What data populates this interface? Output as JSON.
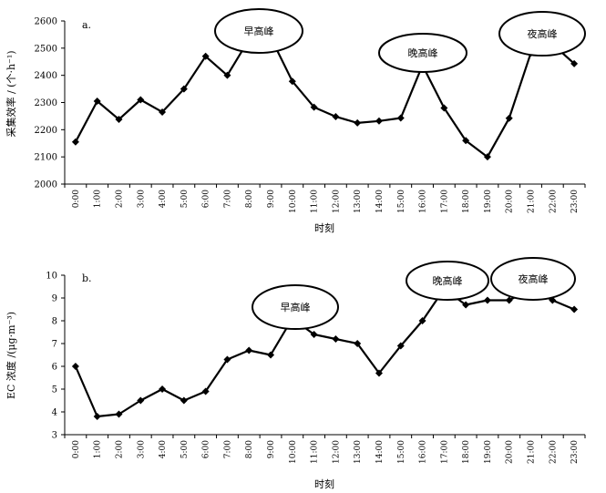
{
  "chart_data": [
    {
      "type": "line",
      "panel_label": "a.",
      "xlabel": "时刻",
      "ylabel": "采集效率 / (个·h⁻¹)",
      "categories": [
        "0:00",
        "1:00",
        "2:00",
        "3:00",
        "4:00",
        "5:00",
        "6:00",
        "7:00",
        "8:00",
        "9:00",
        "10:00",
        "11:00",
        "12:00",
        "13:00",
        "14:00",
        "15:00",
        "16:00",
        "17:00",
        "18:00",
        "19:00",
        "20:00",
        "21:00",
        "22:00",
        "23:00"
      ],
      "series": [
        {
          "values": [
            2155,
            2305,
            2238,
            2310,
            2265,
            2350,
            2470,
            2400,
            2532,
            2540,
            2378,
            2283,
            2248,
            2225,
            2232,
            2243,
            2437,
            2280,
            2160,
            2100,
            2242,
            2482,
            2515,
            2443
          ]
        }
      ],
      "ylim": [
        2000,
        2600
      ],
      "yticks": [
        2000,
        2100,
        2200,
        2300,
        2400,
        2500,
        2600
      ],
      "grid": false,
      "annotations": [
        {
          "text": "早高峰",
          "at": "8:00–9:00"
        },
        {
          "text": "晚高峰",
          "at": "16:00"
        },
        {
          "text": "夜高峰",
          "at": "21:00–22:00"
        }
      ]
    },
    {
      "type": "line",
      "panel_label": "b.",
      "xlabel": "时刻",
      "ylabel": "EC 浓度 /(μg·m⁻³)",
      "categories": [
        "0:00",
        "1:00",
        "2:00",
        "3:00",
        "4:00",
        "5:00",
        "6:00",
        "7:00",
        "8:00",
        "9:00",
        "10:00",
        "11:00",
        "12:00",
        "13:00",
        "14:00",
        "15:00",
        "16:00",
        "17:00",
        "18:00",
        "19:00",
        "20:00",
        "21:00",
        "22:00",
        "23:00"
      ],
      "series": [
        {
          "values": [
            6.0,
            3.8,
            3.9,
            4.5,
            5.0,
            4.5,
            4.9,
            6.3,
            6.7,
            6.5,
            8.1,
            7.4,
            7.2,
            7.0,
            5.7,
            6.9,
            8.0,
            9.4,
            8.7,
            8.9,
            8.9,
            9.4,
            8.9,
            8.5
          ]
        }
      ],
      "ylim": [
        3,
        10
      ],
      "yticks": [
        3,
        4,
        5,
        6,
        7,
        8,
        9,
        10
      ],
      "grid": false,
      "annotations": [
        {
          "text": "早高峰",
          "at": "10:00"
        },
        {
          "text": "晚高峰",
          "at": "17:00"
        },
        {
          "text": "夜高峰",
          "at": "21:00"
        }
      ]
    }
  ]
}
